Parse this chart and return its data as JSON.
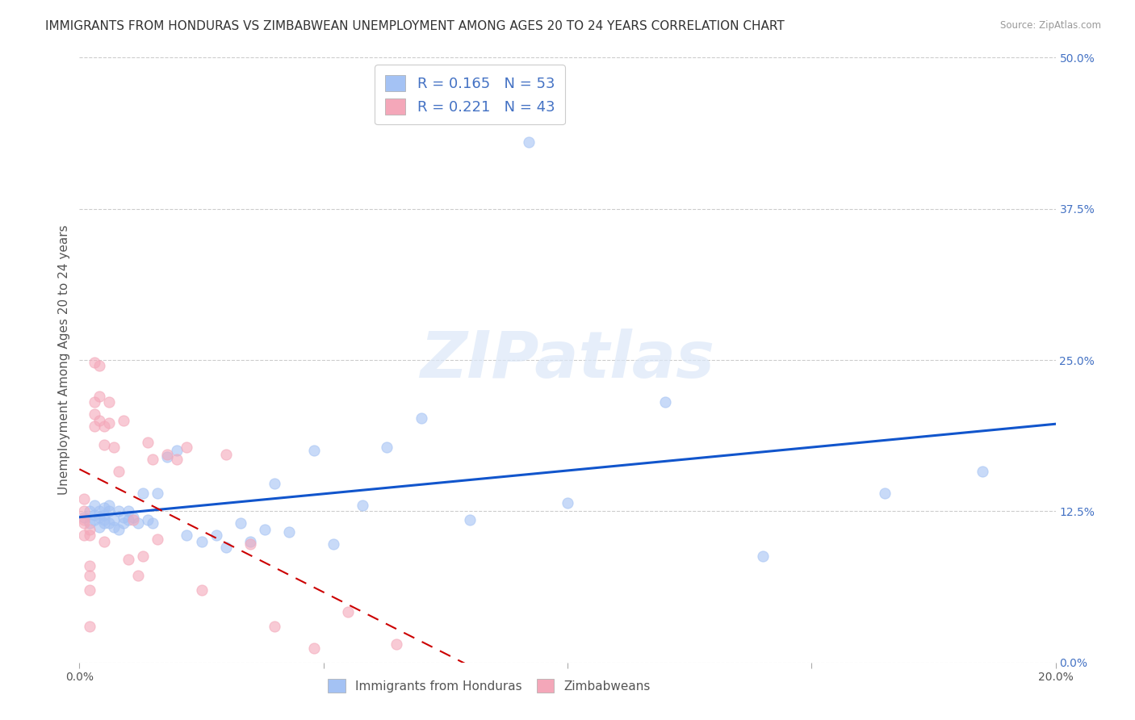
{
  "title": "IMMIGRANTS FROM HONDURAS VS ZIMBABWEAN UNEMPLOYMENT AMONG AGES 20 TO 24 YEARS CORRELATION CHART",
  "source": "Source: ZipAtlas.com",
  "ylabel": "Unemployment Among Ages 20 to 24 years",
  "xlim": [
    0.0,
    0.2
  ],
  "ylim": [
    0.0,
    0.5
  ],
  "xticks": [
    0.0,
    0.05,
    0.1,
    0.15,
    0.2
  ],
  "xtick_labels": [
    "0.0%",
    "",
    "",
    "",
    "20.0%"
  ],
  "yticks_right": [
    0.0,
    0.125,
    0.25,
    0.375,
    0.5
  ],
  "ytick_labels_right": [
    "0.0%",
    "12.5%",
    "25.0%",
    "37.5%",
    "50.0%"
  ],
  "watermark": "ZIPatlas",
  "blue_color": "#a4c2f4",
  "pink_color": "#f4a7b9",
  "trendline_blue": "#1155cc",
  "trendline_pink": "#cc0000",
  "background_color": "#ffffff",
  "grid_color": "#cccccc",
  "title_fontsize": 11,
  "axis_label_fontsize": 11,
  "tick_fontsize": 10,
  "right_tick_color": "#4472c4",
  "blue_R": "0.165",
  "blue_N": "53",
  "pink_R": "0.221",
  "pink_N": "43",
  "blue_points_x": [
    0.001,
    0.002,
    0.002,
    0.003,
    0.003,
    0.003,
    0.004,
    0.004,
    0.004,
    0.005,
    0.005,
    0.005,
    0.005,
    0.006,
    0.006,
    0.006,
    0.007,
    0.007,
    0.008,
    0.008,
    0.009,
    0.009,
    0.01,
    0.01,
    0.011,
    0.012,
    0.013,
    0.014,
    0.015,
    0.016,
    0.018,
    0.02,
    0.022,
    0.025,
    0.028,
    0.03,
    0.033,
    0.035,
    0.038,
    0.04,
    0.043,
    0.048,
    0.052,
    0.058,
    0.063,
    0.07,
    0.08,
    0.092,
    0.1,
    0.12,
    0.14,
    0.165,
    0.185
  ],
  "blue_points_y": [
    0.12,
    0.115,
    0.125,
    0.118,
    0.122,
    0.13,
    0.112,
    0.12,
    0.125,
    0.118,
    0.115,
    0.122,
    0.128,
    0.115,
    0.125,
    0.13,
    0.112,
    0.118,
    0.11,
    0.125,
    0.12,
    0.115,
    0.125,
    0.118,
    0.12,
    0.115,
    0.14,
    0.118,
    0.115,
    0.14,
    0.17,
    0.175,
    0.105,
    0.1,
    0.105,
    0.095,
    0.115,
    0.1,
    0.11,
    0.148,
    0.108,
    0.175,
    0.098,
    0.13,
    0.178,
    0.202,
    0.118,
    0.43,
    0.132,
    0.215,
    0.088,
    0.14,
    0.158
  ],
  "pink_points_x": [
    0.001,
    0.001,
    0.001,
    0.001,
    0.001,
    0.002,
    0.002,
    0.002,
    0.002,
    0.002,
    0.002,
    0.003,
    0.003,
    0.003,
    0.003,
    0.004,
    0.004,
    0.004,
    0.005,
    0.005,
    0.005,
    0.006,
    0.006,
    0.007,
    0.008,
    0.009,
    0.01,
    0.011,
    0.012,
    0.013,
    0.014,
    0.015,
    0.016,
    0.018,
    0.02,
    0.022,
    0.025,
    0.03,
    0.035,
    0.04,
    0.048,
    0.055,
    0.065
  ],
  "pink_points_y": [
    0.115,
    0.105,
    0.118,
    0.125,
    0.135,
    0.11,
    0.105,
    0.08,
    0.072,
    0.06,
    0.03,
    0.248,
    0.215,
    0.205,
    0.195,
    0.245,
    0.22,
    0.2,
    0.195,
    0.18,
    0.1,
    0.215,
    0.198,
    0.178,
    0.158,
    0.2,
    0.085,
    0.118,
    0.072,
    0.088,
    0.182,
    0.168,
    0.102,
    0.172,
    0.168,
    0.178,
    0.06,
    0.172,
    0.098,
    0.03,
    0.012,
    0.042,
    0.015
  ]
}
